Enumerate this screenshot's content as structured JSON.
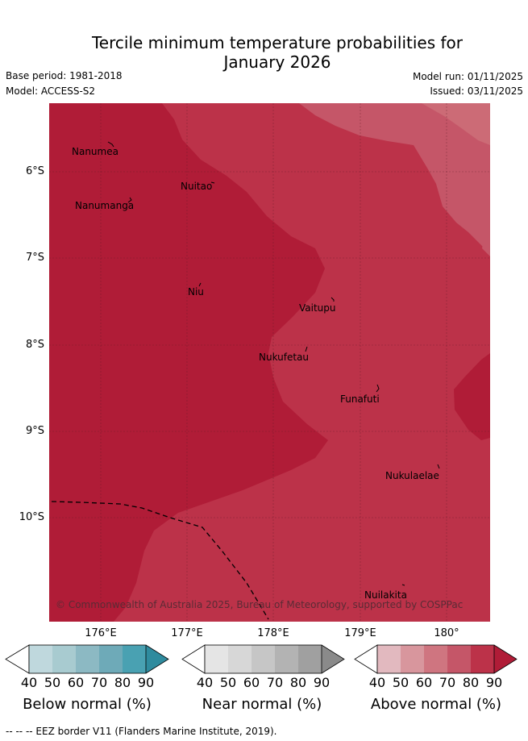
{
  "title_line1": "Tercile minimum temperature probabilities for",
  "title_line2": "January 2026",
  "base_period": "Base period: 1981-2018",
  "model": "Model: ACCESS-S2",
  "model_run": "Model run: 01/11/2025",
  "issued": "Issued: 03/11/2025",
  "y_ticks": [
    "6°S",
    "7°S",
    "8°S",
    "9°S",
    "10°S"
  ],
  "x_ticks": [
    "176°E",
    "177°E",
    "178°E",
    "179°E",
    "180°"
  ],
  "places": {
    "nanumea": "Nanumea",
    "nuitao": "Nuitao",
    "nanumanga": "Nanumanga",
    "niu": "Niu",
    "vaitupu": "Vaitupu",
    "nukufetau": "Nukufetau",
    "funafuti": "Funafuti",
    "nukulaelae": "Nukulaelae",
    "nuilakita": "Nuilakita"
  },
  "credit": "© Commonwealth of Australia 2025, Bureau of Meteorology, supported by COSPPac",
  "colorbars": {
    "ticks": [
      "40",
      "50",
      "60",
      "70",
      "80",
      "90"
    ],
    "below": {
      "label": "Below normal (%)",
      "colors": [
        "#bfd8dd",
        "#a8cbd0",
        "#8cb9c3",
        "#6eaab8",
        "#49a1b2",
        "#2f8b9e"
      ]
    },
    "near": {
      "label": "Near normal (%)",
      "colors": [
        "#e5e5e5",
        "#d7d7d7",
        "#c6c6c6",
        "#b3b3b3",
        "#a0a0a0",
        "#8a8a8a"
      ]
    },
    "above": {
      "label": "Above normal (%)",
      "colors": [
        "#e2b9bf",
        "#d8969d",
        "#cf7580",
        "#c55668",
        "#bc3249",
        "#b01c37"
      ]
    }
  },
  "map_colors": {
    "above_90": "#b01c37",
    "above_80": "#bc3249",
    "above_70": "#c55668",
    "above_60": "#cc6b76"
  },
  "footnote": "--  --  -- EEZ border V11 (Flanders Marine Institute, 2019)."
}
